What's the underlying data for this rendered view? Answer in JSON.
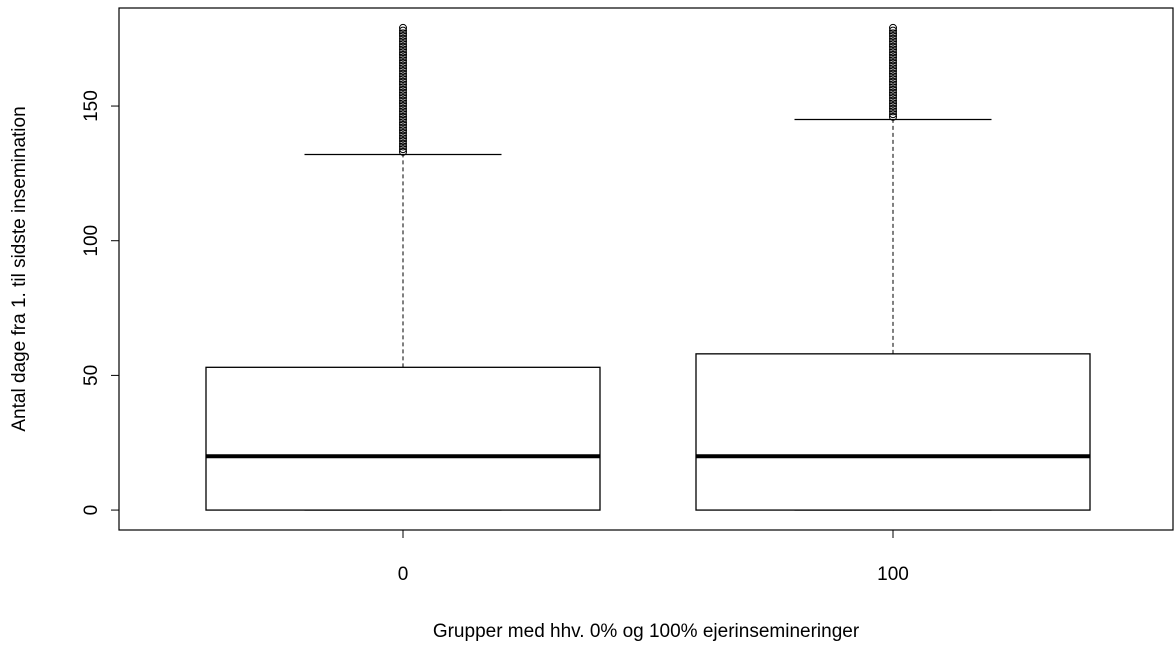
{
  "chart_data": {
    "type": "box",
    "x_label": "Grupper med hhv. 0% og 100% ejerinsemineringer",
    "y_label": "Antal dage fra 1. til sidste insemination",
    "categories": [
      "0",
      "100"
    ],
    "boxes": [
      {
        "whisker_low": 0,
        "q1": 0,
        "median": 20,
        "q3": 53,
        "whisker_high": 132,
        "outliers": [
          133,
          134,
          135,
          136,
          137,
          138,
          139,
          140,
          141,
          142,
          143,
          144,
          145,
          146,
          147,
          148,
          149,
          150,
          151,
          152,
          153,
          154,
          155,
          156,
          157,
          158,
          159,
          160,
          161,
          162,
          163,
          164,
          165,
          166,
          167,
          168,
          169,
          170,
          171,
          172,
          173,
          174,
          175,
          176,
          177,
          178,
          179
        ]
      },
      {
        "whisker_low": 0,
        "q1": 0,
        "median": 20,
        "q3": 58,
        "whisker_high": 145,
        "outliers": [
          146,
          147,
          148,
          149,
          150,
          151,
          152,
          153,
          154,
          155,
          156,
          157,
          158,
          159,
          160,
          161,
          162,
          163,
          164,
          165,
          166,
          167,
          168,
          169,
          170,
          171,
          172,
          173,
          174,
          175,
          176,
          177,
          178,
          179
        ]
      }
    ],
    "ylim": [
      -7.4,
      186.4
    ],
    "yticks": [
      0,
      50,
      100,
      150
    ],
    "color": "#000000"
  }
}
